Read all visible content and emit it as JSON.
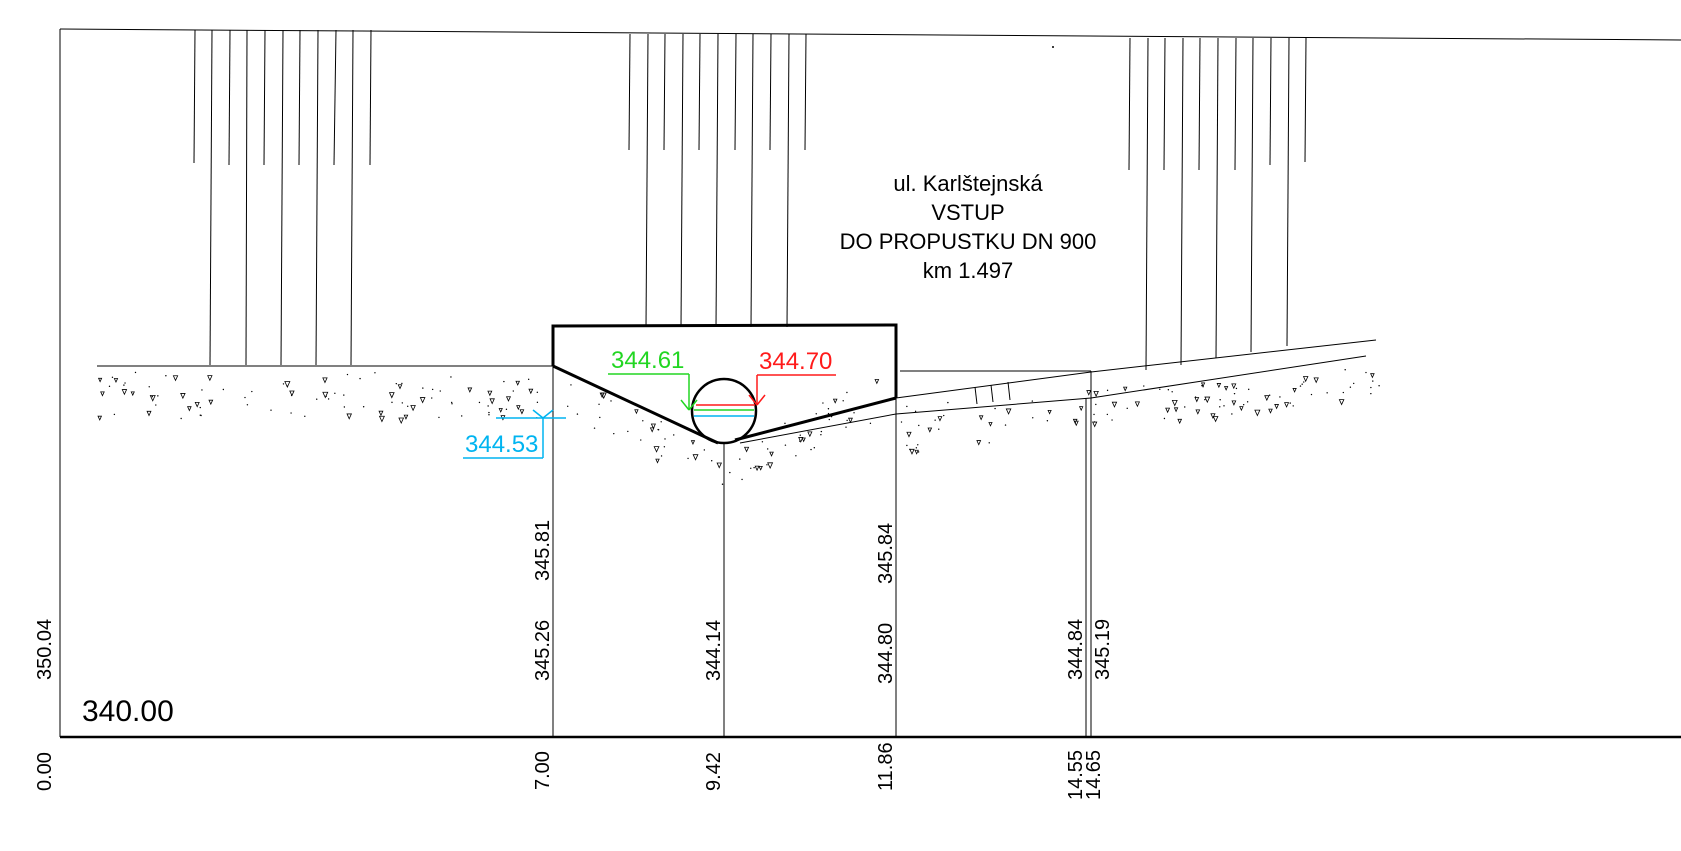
{
  "title_block": {
    "line1": "ul. Karlštejnská",
    "line2": "VSTUP",
    "line3": "DO PROPUSTKU DN 900",
    "line4": "km 1.497"
  },
  "datum_label": "340.00",
  "elevations": {
    "left_edge": "350.04",
    "ditch_top_left": "345.81",
    "ditch_bottom_left": "345.26",
    "pipe_invert": "344.14",
    "ditch_top_right": "345.84",
    "ditch_bottom_right": "344.80",
    "road_a": "344.84",
    "road_b": "345.19"
  },
  "stations": {
    "s0": "0.00",
    "s1": "7.00",
    "s2": "9.42",
    "s3": "11.86",
    "s4": "14.55",
    "s5": "14.65"
  },
  "water_levels": {
    "cyan": "344.53",
    "green": "344.61",
    "red": "344.70"
  },
  "colors": {
    "cyan": "#00b4f0",
    "green": "#22d622",
    "red": "#ff1a1a",
    "line": "#000000"
  }
}
